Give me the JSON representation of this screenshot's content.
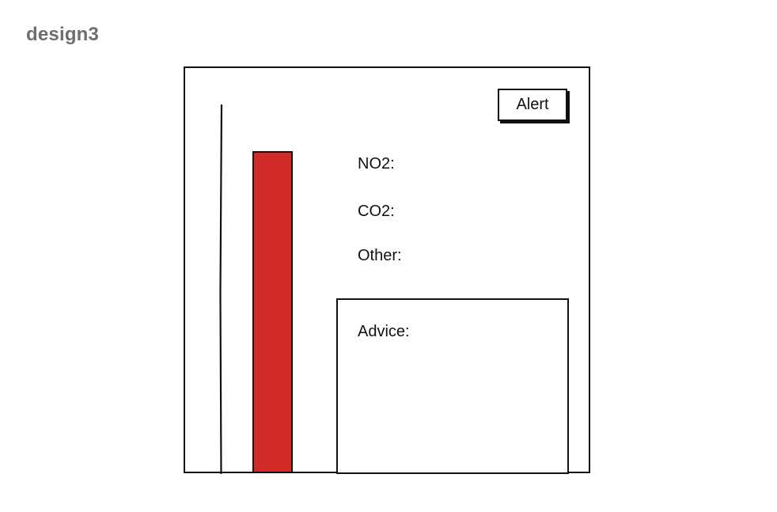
{
  "page": {
    "title": "design3"
  },
  "device": {
    "alert_button_label": "Alert",
    "readings": {
      "no2_label": "NO2:",
      "co2_label": "CO2:",
      "other_label": "Other:"
    },
    "advice": {
      "label": "Advice:"
    },
    "level_bar": {
      "color": "#d22b27"
    }
  }
}
